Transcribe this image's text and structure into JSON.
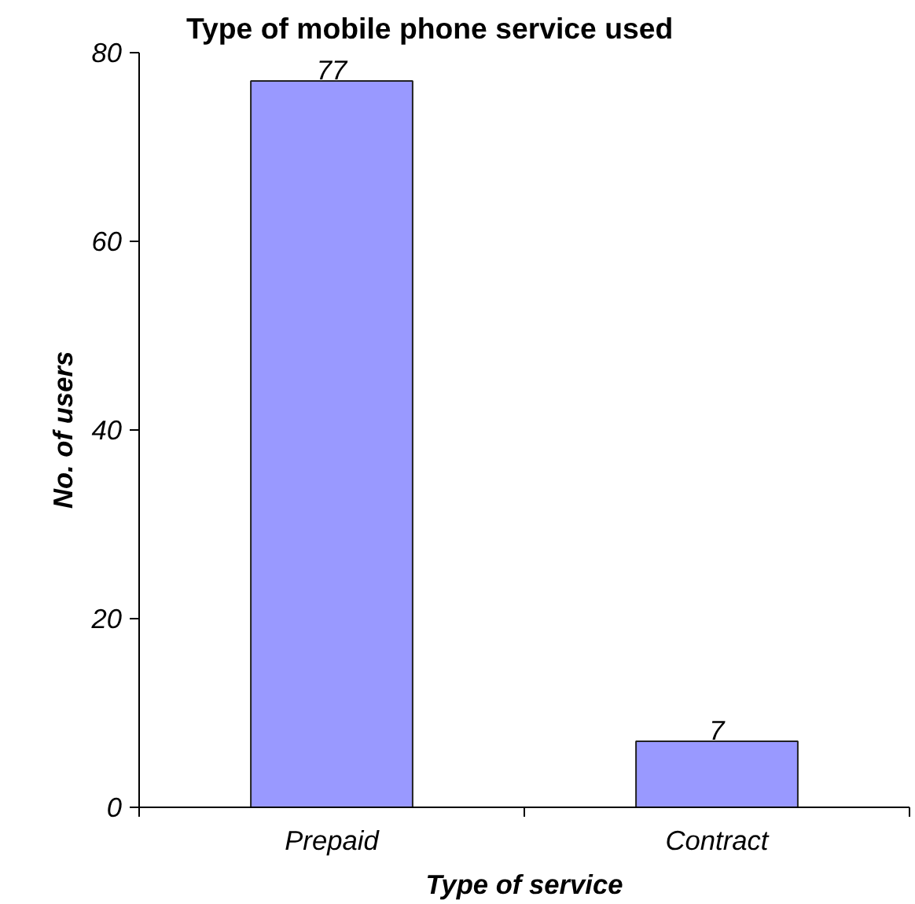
{
  "chart_data": {
    "type": "bar",
    "title": "Type of mobile phone service used",
    "xlabel": "Type of service",
    "ylabel": "No. of users",
    "categories": [
      "Prepaid",
      "Contract"
    ],
    "values": [
      77,
      7
    ],
    "color": "#9999ff",
    "ylim": [
      0,
      80
    ],
    "yticks": [
      0,
      20,
      40,
      60,
      80
    ],
    "grid": false,
    "data_labels": true
  }
}
